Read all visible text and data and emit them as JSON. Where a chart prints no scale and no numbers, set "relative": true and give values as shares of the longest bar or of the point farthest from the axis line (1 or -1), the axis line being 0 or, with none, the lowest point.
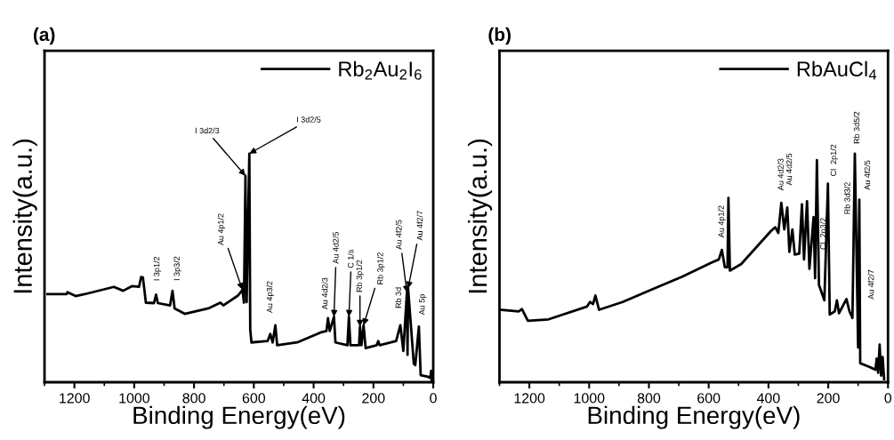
{
  "chart_data": [
    {
      "type": "line",
      "title": "(a)",
      "xlabel": "Binding Energy(eV)",
      "ylabel": "Intensity(a.u.)",
      "xlim": [
        1300,
        0
      ],
      "xticks": [
        1200,
        1000,
        800,
        600,
        400,
        200,
        0
      ],
      "relative": true,
      "tick_labels": "x",
      "legend": "top right",
      "series": [
        {
          "name": "Rb$_{2}$Au$_{2}$I$_{6}$",
          "color": "#000000",
          "x": [
            1290,
            1226,
            1223,
            1196,
            1166,
            1068,
            1037,
            1008,
            984,
            977,
            971,
            966,
            961,
            934,
            927,
            921,
            880,
            872,
            865,
            831,
            752,
            712,
            702,
            653,
            638,
            633,
            628,
            624,
            615,
            612,
            608,
            554,
            545,
            537,
            528,
            522,
            455,
            376,
            357,
            352,
            346,
            332,
            327,
            287,
            282,
            277,
            248,
            245,
            240,
            233,
            226,
            189,
            184,
            179,
            124,
            110,
            100,
            88,
            86,
            84,
            65,
            60,
            48,
            42,
            20,
            10,
            7,
            5
          ],
          "values": [
            0.385,
            0.385,
            0.394,
            0.377,
            0.385,
            0.417,
            0.4,
            0.42,
            0.417,
            0.46,
            0.458,
            0.404,
            0.348,
            0.346,
            0.383,
            0.346,
            0.336,
            0.4,
            0.323,
            0.299,
            0.323,
            0.348,
            0.336,
            0.379,
            0.404,
            0.348,
            0.903,
            0.35,
            1.0,
            0.231,
            0.174,
            0.18,
            0.211,
            0.174,
            0.249,
            0.162,
            0.174,
            0.218,
            0.224,
            0.28,
            0.224,
            0.286,
            0.174,
            0.162,
            0.286,
            0.162,
            0.162,
            0.243,
            0.162,
            0.249,
            0.149,
            0.162,
            0.18,
            0.162,
            0.18,
            0.249,
            0.137,
            0.392,
            0.12,
            0.41,
            0.081,
            0.075,
            0.243,
            0.031,
            0.025,
            0.019,
            0.05,
            0.006
          ]
        }
      ],
      "annotations": [
        {
          "text": "I 3d2/3",
          "x": 628,
          "y": 0.903
        },
        {
          "text": "I 3d2/5",
          "x": 615,
          "y": 1.0
        },
        {
          "text": "I 3p1/2",
          "x": 927,
          "y": 0.383
        },
        {
          "text": "I 3p3/2",
          "x": 872,
          "y": 0.4
        },
        {
          "text": "Au 4p1/2",
          "x": 638,
          "y": 0.404
        },
        {
          "text": "Au 4p3/2",
          "x": 545,
          "y": 0.211
        },
        {
          "text": "Au 4d2/3",
          "x": 352,
          "y": 0.28
        },
        {
          "text": "Au 4d2/5",
          "x": 332,
          "y": 0.286
        },
        {
          "text": "C 1/s",
          "x": 282,
          "y": 0.286
        },
        {
          "text": "Rb 3p1/2",
          "x": 245,
          "y": 0.243
        },
        {
          "text": "Rb 3p1/2",
          "x": 233,
          "y": 0.249
        },
        {
          "text": "Au 4f2/5",
          "x": 88,
          "y": 0.392
        },
        {
          "text": "Au 4f2/7",
          "x": 84,
          "y": 0.41
        },
        "Rb 3d",
        {
          "text": "Au 5p",
          "x": 48,
          "y": 0.243
        }
      ]
    },
    {
      "type": "line",
      "title": "(b)",
      "xlabel": "Binding Energy(eV)",
      "ylabel": "Intensity(a.u.)",
      "xlim": [
        1300,
        0
      ],
      "xticks": [
        1200,
        1000,
        800,
        600,
        400,
        200,
        0
      ],
      "relative": true,
      "tick_labels": "x",
      "legend": "top right",
      "series": [
        {
          "name": "RbAuCl$_{4}$",
          "color": "#000000",
          "x": [
            1299,
            1235,
            1225,
            1205,
            1136,
            1007,
            997,
            987,
            979,
            967,
            888,
            789,
            690,
            591,
            566,
            556,
            546,
            537,
            534,
            529,
            491,
            392,
            377,
            367,
            357,
            347,
            337,
            330,
            320,
            312,
            297,
            288,
            281,
            271,
            263,
            249,
            244,
            238,
            231,
            213,
            201,
            195,
            178,
            171,
            164,
            139,
            129,
            119,
            111,
            100,
            98,
            96,
            93,
            66,
            42,
            38,
            33,
            28,
            23,
            18,
            13
          ],
          "values": [
            0.317,
            0.31,
            0.32,
            0.269,
            0.275,
            0.331,
            0.351,
            0.342,
            0.379,
            0.317,
            0.351,
            0.406,
            0.461,
            0.523,
            0.537,
            0.579,
            0.503,
            0.503,
            0.806,
            0.488,
            0.517,
            0.661,
            0.678,
            0.653,
            0.785,
            0.668,
            0.764,
            0.57,
            0.668,
            0.558,
            0.562,
            0.778,
            0.537,
            0.792,
            0.496,
            0.723,
            0.455,
            0.971,
            0.426,
            0.358,
            0.868,
            0.296,
            0.31,
            0.358,
            0.302,
            0.364,
            0.31,
            0.281,
            1.0,
            0.152,
            0.57,
            0.798,
            0.083,
            0.069,
            0.055,
            0.103,
            0.041,
            0.165,
            0.029,
            0.11,
            0.014
          ]
        }
      ],
      "annotations": [
        {
          "text": "Au 4p1/2",
          "x": 556,
          "y": 0.579
        },
        {
          "text": "Au 4d2/3",
          "x": 357,
          "y": 0.785
        },
        {
          "text": "Au 4d2/5",
          "x": 337,
          "y": 0.764
        },
        {
          "text": "Cl  2p1/2",
          "x": 201,
          "y": 0.868
        },
        "Cl  2p3/2",
        "Rb 3d3/2",
        {
          "text": "Rb 3d5/2",
          "x": 111,
          "y": 1.0
        },
        {
          "text": "Au 4f2/5",
          "x": 96,
          "y": 0.798
        },
        "Au 4f2/7"
      ]
    }
  ]
}
